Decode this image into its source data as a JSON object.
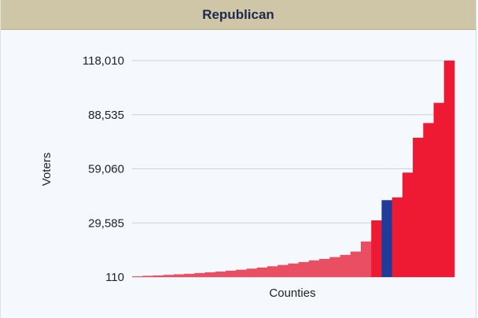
{
  "panel": {
    "title": "Republican"
  },
  "chart_data": {
    "type": "bar",
    "xlabel": "Counties",
    "ylabel": "Voters",
    "ylim": [
      110,
      118010
    ],
    "yticks": [
      "118,010",
      "88,535",
      "59,060",
      "29,585",
      "110"
    ],
    "ytick_values": [
      118010,
      88535,
      59060,
      29585,
      110
    ],
    "grid": true,
    "colors": {
      "light": "#ea4e62",
      "dark": "#ee1a33",
      "highlight": "#1f3c99"
    },
    "values": [
      500,
      800,
      1000,
      1300,
      1600,
      1900,
      2300,
      2700,
      3100,
      3600,
      4100,
      4700,
      5300,
      6000,
      6700,
      7500,
      8300,
      9200,
      10000,
      11000,
      12200,
      14000,
      19500,
      31000,
      42000,
      43500,
      57000,
      76000,
      84000,
      95000,
      118010
    ],
    "highlight_index": 24
  }
}
